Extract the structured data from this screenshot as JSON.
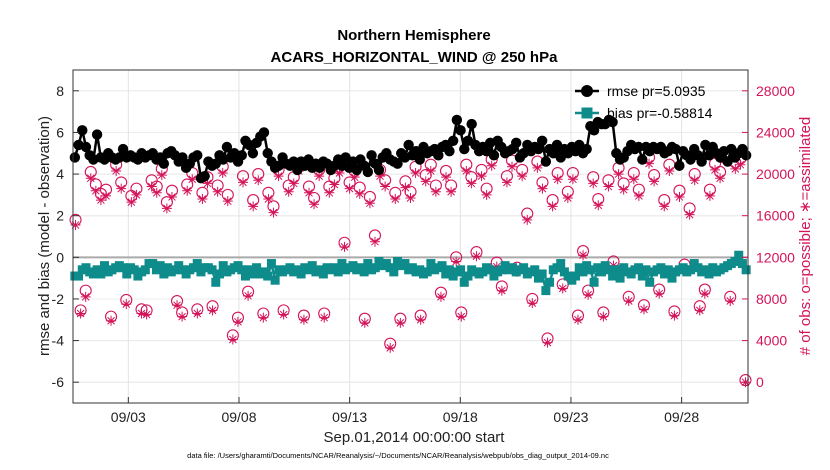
{
  "chart_data": {
    "type": "line",
    "title": "Northern Hemisphere",
    "subtitle": "ACARS_HORIZONTAL_WIND @ 250 hPa",
    "xlabel": "Sep.01,2014 00:00:00 start",
    "ylabel": "rmse and bias (model - observation)",
    "y2label": "# of obs: o=possible; ∗=assimilated",
    "footnote": "data file: /Users/gharamti/Documents/NCAR/Reanalysis/~/Documents/NCAR/Reanalysis/webpub/obs_diag_output_2014-09.nc",
    "xlim": [
      0.0,
      30.5
    ],
    "ylim": [
      -7,
      9
    ],
    "y2lim": [
      -2000,
      30000
    ],
    "xticks": [
      2.5,
      7.5,
      12.5,
      17.5,
      22.5,
      27.5
    ],
    "xtick_labels": [
      "09/03",
      "09/08",
      "09/13",
      "09/18",
      "09/23",
      "09/28"
    ],
    "yticks": [
      -6,
      -4,
      -2,
      0,
      2,
      4,
      6,
      8
    ],
    "y2ticks": [
      0,
      4000,
      8000,
      12000,
      16000,
      20000,
      24000,
      28000
    ],
    "grid": true,
    "zero_line": 0,
    "legend_position": "top-right",
    "colors": {
      "rmse": "#000000",
      "bias": "#0e8c8c",
      "obs": "#d4145a",
      "zero": "#aaaaaa"
    },
    "series": [
      {
        "name": "rmse pr=5.0935",
        "axis": "left",
        "marker": "circle",
        "values": [
          4.8,
          5.4,
          6.1,
          5.3,
          4.9,
          4.7,
          5.9,
          4.8,
          4.7,
          5.0,
          4.8,
          4.7,
          4.8,
          5.2,
          4.8,
          4.9,
          4.8,
          4.7,
          5.0,
          4.8,
          4.9,
          5.0,
          4.7,
          4.8,
          4.5,
          5.0,
          5.1,
          4.9,
          4.6,
          4.8,
          4.3,
          4.5,
          4.8,
          4.9,
          3.8,
          3.9,
          4.6,
          4.4,
          4.5,
          4.9,
          4.7,
          5.3,
          4.8,
          5.0,
          4.6,
          4.9,
          5.6,
          5.4,
          5.0,
          5.5,
          5.8,
          6.0,
          5.0,
          4.6,
          4.3,
          4.4,
          4.8,
          4.5,
          4.4,
          4.6,
          4.2,
          4.6,
          4.4,
          4.7,
          4.3,
          4.5,
          4.3,
          4.6,
          4.5,
          4.2,
          4.4,
          4.7,
          4.4,
          4.8,
          4.3,
          4.6,
          4.2,
          4.7,
          4.4,
          4.1,
          4.9,
          4.5,
          4.2,
          4.8,
          5.0,
          4.7,
          4.6,
          4.5,
          5.0,
          4.8,
          5.4,
          4.9,
          5.1,
          4.7,
          5.3,
          5.0,
          5.1,
          5.2,
          4.9,
          5.3,
          5.4,
          5.1,
          5.6,
          6.6,
          6.1,
          5.2,
          5.6,
          6.4,
          5.4,
          5.1,
          5.3,
          5.1,
          5.5,
          4.9,
          5.6,
          5.3,
          5.0,
          5.1,
          5.2,
          5.5,
          4.8,
          5.0,
          5.4,
          5.1,
          5.3,
          5.2,
          5.6,
          4.6,
          5.2,
          5.0,
          5.4,
          4.8,
          5.2,
          5.0,
          5.3,
          5.1,
          5.4,
          5.0,
          5.2,
          6.3,
          6.1,
          6.5,
          6.4,
          6.4,
          6.6,
          6.5,
          5.0,
          4.7,
          4.8,
          5.1,
          5.4,
          5.2,
          5.3,
          4.7,
          5.3,
          5.1,
          5.3,
          5.2,
          5.3,
          5.0,
          5.1,
          5.3,
          5.2,
          4.4,
          5.1,
          4.9,
          4.7,
          5.2,
          4.9,
          4.6,
          5.4,
          4.9,
          5.3,
          5.0,
          4.8,
          5.1,
          4.6,
          5.2,
          4.8,
          5.0,
          5.2,
          4.9
        ]
      },
      {
        "name": "bias pr=-0.58814",
        "axis": "left",
        "marker": "square",
        "values": [
          -0.9,
          -0.9,
          -0.6,
          -0.5,
          -0.7,
          -0.8,
          -0.6,
          -0.8,
          -0.4,
          -0.7,
          -0.6,
          -0.5,
          -0.4,
          -0.5,
          -0.8,
          -0.5,
          -0.6,
          -0.9,
          -0.7,
          -0.6,
          -0.3,
          -0.3,
          -0.6,
          -0.4,
          -0.8,
          -0.5,
          -0.7,
          -0.6,
          -0.4,
          -0.6,
          -0.8,
          -0.6,
          -0.5,
          -0.3,
          -0.7,
          -0.5,
          -0.5,
          -0.6,
          -1.2,
          -0.8,
          -0.4,
          -0.7,
          -0.6,
          -0.5,
          -0.4,
          -0.6,
          -0.9,
          -0.6,
          -0.8,
          -0.5,
          -0.8,
          -0.7,
          -0.9,
          -0.3,
          -1.1,
          -0.6,
          -0.7,
          -0.6,
          -0.5,
          -0.7,
          -0.6,
          -0.8,
          -0.5,
          -0.6,
          -0.4,
          -0.7,
          -0.6,
          -0.8,
          -0.5,
          -0.6,
          -0.5,
          -0.7,
          -0.3,
          -0.6,
          -0.5,
          -0.4,
          -0.6,
          -0.5,
          -0.7,
          -0.3,
          -0.6,
          -0.5,
          -0.2,
          -0.4,
          -0.3,
          -0.5,
          -0.7,
          -0.2,
          -0.4,
          -0.3,
          -0.6,
          -0.5,
          -0.7,
          -0.6,
          -0.8,
          -0.7,
          -0.3,
          -0.6,
          -0.5,
          -0.4,
          -0.8,
          -0.6,
          -0.9,
          -0.7,
          -0.6,
          -1.2,
          -0.9,
          -0.6,
          -0.7,
          -0.8,
          -0.7,
          -0.5,
          -0.6,
          -0.9,
          -0.7,
          -0.6,
          -0.4,
          -0.6,
          -0.5,
          -0.7,
          -0.6,
          -0.5,
          -0.8,
          -0.7,
          -0.6,
          -1.0,
          -0.8,
          -1.6,
          -1.2,
          -0.6,
          -0.5,
          -0.3,
          -0.7,
          -0.9,
          -1.1,
          -0.9,
          -0.5,
          -0.7,
          -0.4,
          -0.6,
          -1.2,
          -0.5,
          -0.7,
          -0.4,
          -0.6,
          -0.9,
          -0.6,
          -1.0,
          -0.5,
          -0.7,
          -0.8,
          -0.6,
          -0.5,
          -0.9,
          -0.6,
          -1.2,
          -0.7,
          -0.6,
          -0.5,
          -0.8,
          -0.6,
          -1.0,
          -0.7,
          -0.6,
          -0.5,
          -0.7,
          -0.6,
          -0.3,
          -0.5,
          -0.7,
          -0.6,
          -0.8,
          -0.5,
          -0.7,
          -0.6,
          -0.5,
          -0.4,
          -0.3,
          -0.2,
          0.1,
          -0.3,
          -0.6
        ]
      },
      {
        "name": "possible (o)",
        "axis": "right",
        "marker": "open-circle",
        "values": [
          15600,
          6900,
          8800,
          20200,
          19000,
          18100,
          18500,
          6300,
          20900,
          19200,
          7900,
          17900,
          18600,
          7000,
          6900,
          19400,
          18800,
          20500,
          17300,
          18400,
          7800,
          6700,
          19000,
          20100,
          7000,
          18200,
          19700,
          7300,
          18900,
          20700,
          18000,
          4500,
          6200,
          19800,
          8700,
          17500,
          20000,
          6600,
          18200,
          16900,
          20400,
          6900,
          18900,
          19700,
          20900,
          6400,
          18800,
          17700,
          20400,
          6600,
          18800,
          19600,
          20700,
          13400,
          19200,
          20300,
          18700,
          6100,
          17800,
          14100,
          20400,
          19400,
          3700,
          18200,
          6100,
          19300,
          18300,
          20700,
          6400,
          19900,
          20900,
          18900,
          8600,
          20300,
          18900,
          12000,
          6700,
          20900,
          19700,
          12500,
          20400,
          18600,
          21400,
          11500,
          9200,
          19800,
          21300,
          11000,
          20400,
          16200,
          8000,
          21200,
          19200,
          4200,
          17500,
          20100,
          9400,
          18300,
          20100,
          6400,
          12600,
          8800,
          19700,
          17600,
          6700,
          19400,
          11600,
          20600,
          19100,
          8200,
          20100,
          18500,
          7400,
          21600,
          19900,
          8900,
          17500,
          20900,
          6800,
          18400,
          11300,
          16700,
          20000,
          7300,
          8900,
          18500,
          21000,
          20200,
          22000,
          8200,
          21100,
          21500,
          200
        ]
      },
      {
        "name": "assimilated (*)",
        "axis": "right",
        "marker": "asterisk",
        "values": [
          15100,
          6600,
          8200,
          19600,
          18400,
          17500,
          17900,
          5900,
          20300,
          18600,
          7500,
          17300,
          18000,
          6600,
          6500,
          18800,
          18200,
          19900,
          16700,
          17800,
          7400,
          6300,
          18400,
          19500,
          6600,
          17600,
          19100,
          6900,
          18300,
          20100,
          17400,
          4100,
          5800,
          19200,
          8300,
          16900,
          19400,
          6200,
          17600,
          16300,
          19800,
          6500,
          18300,
          19100,
          20300,
          6000,
          18200,
          17100,
          19800,
          6200,
          18200,
          19000,
          20100,
          13000,
          18600,
          19700,
          18100,
          5700,
          17200,
          13500,
          19800,
          18800,
          3300,
          17600,
          5700,
          18700,
          17700,
          20100,
          6000,
          19300,
          20300,
          18300,
          8200,
          19700,
          18300,
          11600,
          6300,
          20300,
          19100,
          12100,
          19800,
          18000,
          20800,
          11100,
          8800,
          19200,
          20700,
          10600,
          19800,
          15600,
          7600,
          20600,
          18600,
          3800,
          16900,
          19500,
          9000,
          17700,
          19500,
          6000,
          12200,
          8400,
          19100,
          17000,
          6300,
          18800,
          11200,
          20000,
          18500,
          7800,
          19500,
          17900,
          7000,
          21000,
          19300,
          8500,
          16900,
          20300,
          6400,
          17800,
          10900,
          16100,
          19400,
          6900,
          8500,
          17900,
          20400,
          19600,
          21400,
          7800,
          20500,
          20900,
          0
        ]
      }
    ]
  }
}
